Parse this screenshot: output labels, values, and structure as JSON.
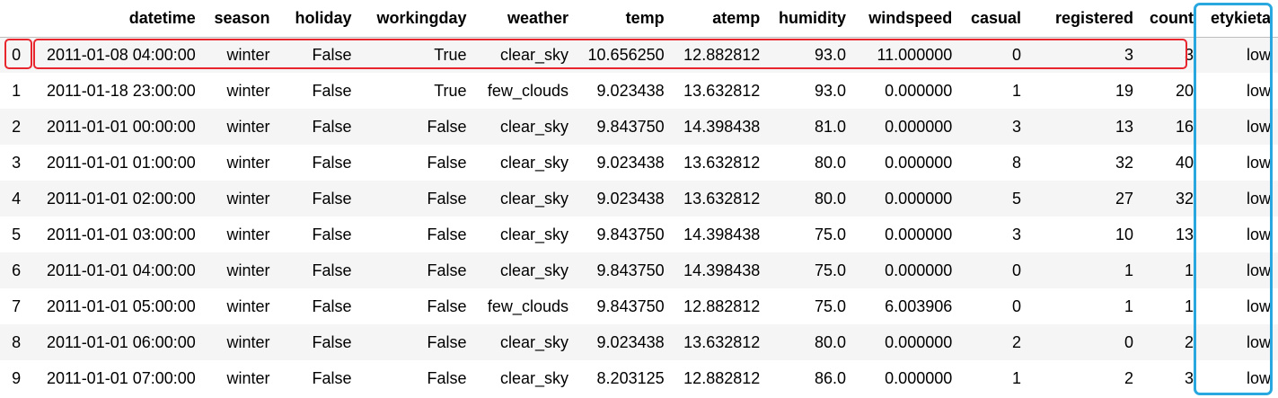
{
  "table": {
    "index_header": "",
    "columns": [
      "datetime",
      "season",
      "holiday",
      "workingday",
      "weather",
      "temp",
      "atemp",
      "humidity",
      "windspeed",
      "casual",
      "registered",
      "count",
      "etykieta"
    ],
    "rows": [
      {
        "index": "0",
        "cells": [
          "2011-01-08 04:00:00",
          "winter",
          "False",
          "True",
          "clear_sky",
          "10.656250",
          "12.882812",
          "93.0",
          "11.000000",
          "0",
          "3",
          "3",
          "low"
        ]
      },
      {
        "index": "1",
        "cells": [
          "2011-01-18 23:00:00",
          "winter",
          "False",
          "True",
          "few_clouds",
          "9.023438",
          "13.632812",
          "93.0",
          "0.000000",
          "1",
          "19",
          "20",
          "low"
        ]
      },
      {
        "index": "2",
        "cells": [
          "2011-01-01 00:00:00",
          "winter",
          "False",
          "False",
          "clear_sky",
          "9.843750",
          "14.398438",
          "81.0",
          "0.000000",
          "3",
          "13",
          "16",
          "low"
        ]
      },
      {
        "index": "3",
        "cells": [
          "2011-01-01 01:00:00",
          "winter",
          "False",
          "False",
          "clear_sky",
          "9.023438",
          "13.632812",
          "80.0",
          "0.000000",
          "8",
          "32",
          "40",
          "low"
        ]
      },
      {
        "index": "4",
        "cells": [
          "2011-01-01 02:00:00",
          "winter",
          "False",
          "False",
          "clear_sky",
          "9.023438",
          "13.632812",
          "80.0",
          "0.000000",
          "5",
          "27",
          "32",
          "low"
        ]
      },
      {
        "index": "5",
        "cells": [
          "2011-01-01 03:00:00",
          "winter",
          "False",
          "False",
          "clear_sky",
          "9.843750",
          "14.398438",
          "75.0",
          "0.000000",
          "3",
          "10",
          "13",
          "low"
        ]
      },
      {
        "index": "6",
        "cells": [
          "2011-01-01 04:00:00",
          "winter",
          "False",
          "False",
          "clear_sky",
          "9.843750",
          "14.398438",
          "75.0",
          "0.000000",
          "0",
          "1",
          "1",
          "low"
        ]
      },
      {
        "index": "7",
        "cells": [
          "2011-01-01 05:00:00",
          "winter",
          "False",
          "False",
          "few_clouds",
          "9.843750",
          "12.882812",
          "75.0",
          "6.003906",
          "0",
          "1",
          "1",
          "low"
        ]
      },
      {
        "index": "8",
        "cells": [
          "2011-01-01 06:00:00",
          "winter",
          "False",
          "False",
          "clear_sky",
          "9.023438",
          "13.632812",
          "80.0",
          "0.000000",
          "2",
          "0",
          "2",
          "low"
        ]
      },
      {
        "index": "9",
        "cells": [
          "2011-01-01 07:00:00",
          "winter",
          "False",
          "False",
          "clear_sky",
          "8.203125",
          "12.882812",
          "86.0",
          "0.000000",
          "1",
          "2",
          "3",
          "low"
        ]
      }
    ]
  },
  "highlights": {
    "row_box_color": "#e8242c",
    "column_box_color": "#29a8e0",
    "highlighted_row_index": "0",
    "highlighted_column": "etykieta"
  }
}
